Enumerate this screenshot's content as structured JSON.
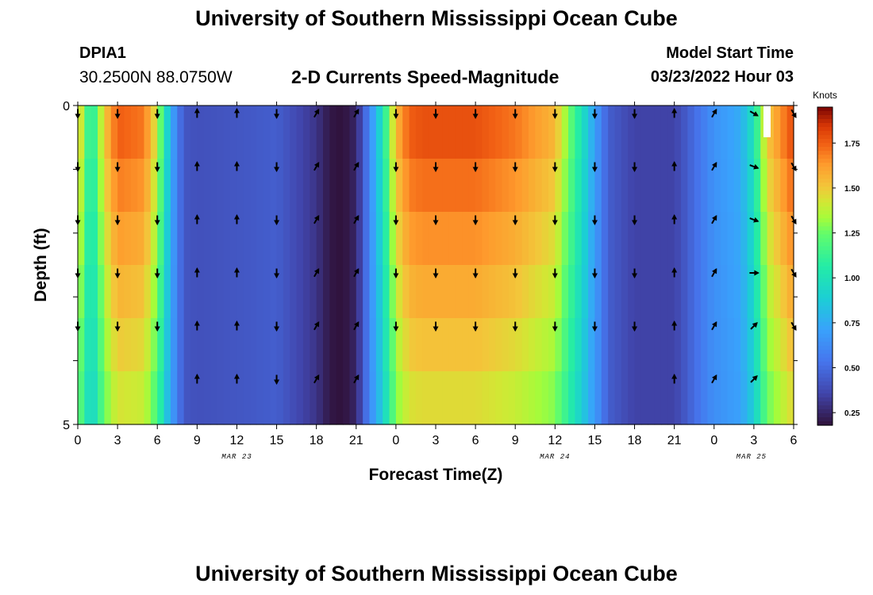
{
  "header": {
    "title": "University of Southern Mississippi Ocean Cube",
    "station": "DPIA1",
    "coordinates": "30.2500N  88.0750W",
    "subtitle": "2-D Currents Speed-Magnitude",
    "model_start_label": "Model Start Time",
    "model_start_value": "03/23/2022 Hour 03"
  },
  "footer": {
    "title": "University of Southern Mississippi Ocean Cube"
  },
  "chart_data": {
    "type": "heatmap",
    "title": "2-D Currents Speed-Magnitude",
    "xlabel": "Forecast Time(Z)",
    "ylabel": "Depth (ft)",
    "x_tick_labels": [
      "0",
      "3",
      "6",
      "9",
      "12",
      "15",
      "18",
      "21",
      "0",
      "3",
      "6",
      "9",
      "12",
      "15",
      "18",
      "21",
      "0",
      "3",
      "6"
    ],
    "date_labels": [
      {
        "text": "MAR 23",
        "at_tick": 4
      },
      {
        "text": "MAR 24",
        "at_tick": 12
      },
      {
        "text": "MAR 25",
        "at_tick": 17
      }
    ],
    "y_tick_labels": [
      "0",
      "",
      "",
      "",
      "",
      "5"
    ],
    "ylim": [
      0,
      5
    ],
    "forecast_hours": 54,
    "colorbar": {
      "label": "Knots",
      "range": [
        0.18,
        1.95
      ],
      "ticks": [
        0.25,
        0.5,
        0.75,
        1.0,
        1.25,
        1.5,
        1.75
      ],
      "tick_labels": [
        "0.25",
        "0.50",
        "0.75",
        "1.00",
        "1.25",
        "1.50",
        "1.75"
      ]
    },
    "speed_profile_hours": [
      0,
      1,
      2,
      3,
      5,
      6,
      7,
      8,
      9,
      12,
      15,
      17,
      18,
      19,
      20,
      21,
      22,
      23,
      24,
      25,
      26,
      30,
      33,
      36,
      38,
      39,
      40,
      42,
      45,
      48,
      50,
      51,
      52,
      54
    ],
    "speed_profile_knots": [
      1.55,
      1.0,
      1.5,
      1.75,
      1.7,
      1.4,
      0.75,
      0.42,
      0.4,
      0.42,
      0.45,
      0.35,
      0.3,
      0.2,
      0.18,
      0.25,
      0.6,
      1.0,
      1.55,
      1.75,
      1.78,
      1.78,
      1.7,
      1.55,
      1.0,
      0.7,
      0.45,
      0.35,
      0.35,
      0.65,
      0.75,
      1.0,
      1.5,
      1.8
    ],
    "depth_rows_ft": [
      0,
      1,
      2,
      3,
      4,
      5
    ],
    "arrow_hours": [
      0,
      3,
      6,
      9,
      12,
      15,
      18,
      21,
      24,
      27,
      30,
      33,
      36,
      39,
      42,
      45,
      48,
      51,
      54
    ],
    "arrow_directions": "down = southward flow (ebb), up = northward flow (flood), diagonal = veering"
  }
}
